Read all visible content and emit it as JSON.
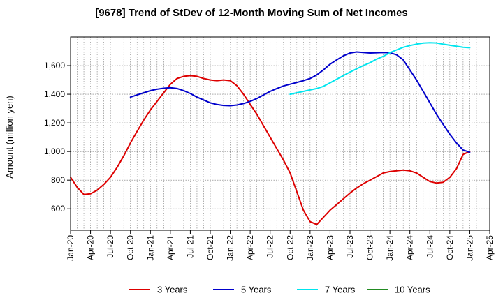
{
  "chart_data": {
    "type": "line",
    "title": "[9678]  Trend of StDev of 12-Month Moving Sum of Net Incomes",
    "ylabel": "Amount (million yen)",
    "xlabel": "",
    "ylim": [
      450,
      1800
    ],
    "yticks": [
      600,
      800,
      1000,
      1200,
      1400,
      1600
    ],
    "ytick_labels": [
      "600",
      "800",
      "1,000",
      "1,200",
      "1,400",
      "1,600"
    ],
    "x_start": "Jan-20",
    "x_end": "Apr-25",
    "xtick_labels": [
      "Jan-20",
      "Apr-20",
      "Jul-20",
      "Oct-20",
      "Jan-21",
      "Apr-21",
      "Jul-21",
      "Oct-21",
      "Jan-22",
      "Apr-22",
      "Jul-22",
      "Oct-22",
      "Jan-23",
      "Apr-23",
      "Jul-23",
      "Oct-23",
      "Jan-24",
      "Apr-24",
      "Jul-24",
      "Oct-24",
      "Jan-25",
      "Apr-25"
    ],
    "grid": true,
    "legend_position": "bottom",
    "series": [
      {
        "name": "3 Years",
        "color": "#dd0000",
        "x": [
          "2020-01",
          "2020-02",
          "2020-03",
          "2020-04",
          "2020-05",
          "2020-06",
          "2020-07",
          "2020-08",
          "2020-09",
          "2020-10",
          "2020-11",
          "2020-12",
          "2021-01",
          "2021-02",
          "2021-03",
          "2021-04",
          "2021-05",
          "2021-06",
          "2021-07",
          "2021-08",
          "2021-09",
          "2021-10",
          "2021-11",
          "2021-12",
          "2022-01",
          "2022-02",
          "2022-03",
          "2022-04",
          "2022-05",
          "2022-06",
          "2022-07",
          "2022-08",
          "2022-09",
          "2022-10",
          "2022-11",
          "2022-12",
          "2023-01",
          "2023-02",
          "2023-03",
          "2023-04",
          "2023-05",
          "2023-06",
          "2023-07",
          "2023-08",
          "2023-09",
          "2023-10",
          "2023-11",
          "2023-12",
          "2024-01",
          "2024-02",
          "2024-03",
          "2024-04",
          "2024-05",
          "2024-06",
          "2024-07",
          "2024-08",
          "2024-09",
          "2024-10",
          "2024-11",
          "2024-12",
          "2025-01"
        ],
        "values": [
          820,
          750,
          700,
          705,
          730,
          770,
          820,
          890,
          970,
          1060,
          1140,
          1220,
          1290,
          1350,
          1410,
          1470,
          1510,
          1525,
          1530,
          1525,
          1510,
          1500,
          1495,
          1500,
          1495,
          1460,
          1400,
          1330,
          1260,
          1180,
          1100,
          1020,
          940,
          850,
          720,
          590,
          510,
          490,
          540,
          590,
          630,
          670,
          710,
          745,
          775,
          800,
          825,
          850,
          860,
          865,
          870,
          865,
          850,
          820,
          790,
          780,
          785,
          820,
          880,
          980,
          1000
        ],
        "values_note": ""
      },
      {
        "name": "5 Years",
        "color": "#0000cc",
        "x": [
          "2020-10",
          "2020-11",
          "2020-12",
          "2021-01",
          "2021-02",
          "2021-03",
          "2021-04",
          "2021-05",
          "2021-06",
          "2021-07",
          "2021-08",
          "2021-09",
          "2021-10",
          "2021-11",
          "2021-12",
          "2022-01",
          "2022-02",
          "2022-03",
          "2022-04",
          "2022-05",
          "2022-06",
          "2022-07",
          "2022-08",
          "2022-09",
          "2022-10",
          "2022-11",
          "2022-12",
          "2023-01",
          "2023-02",
          "2023-03",
          "2023-04",
          "2023-05",
          "2023-06",
          "2023-07",
          "2023-08",
          "2023-09",
          "2023-10",
          "2023-11",
          "2023-12",
          "2024-01",
          "2024-02",
          "2024-03",
          "2024-04",
          "2024-05",
          "2024-06",
          "2024-07",
          "2024-08",
          "2024-09",
          "2024-10",
          "2024-11",
          "2024-12",
          "2025-01"
        ],
        "values": [
          1380,
          1395,
          1410,
          1425,
          1435,
          1442,
          1445,
          1440,
          1425,
          1405,
          1380,
          1360,
          1340,
          1328,
          1322,
          1320,
          1325,
          1335,
          1350,
          1370,
          1395,
          1420,
          1440,
          1458,
          1470,
          1482,
          1495,
          1510,
          1535,
          1570,
          1610,
          1640,
          1668,
          1688,
          1695,
          1692,
          1688,
          1690,
          1692,
          1690,
          1675,
          1640,
          1570,
          1500,
          1420,
          1340,
          1260,
          1190,
          1120,
          1060,
          1010,
          995
        ]
      },
      {
        "name": "7 Years",
        "color": "#00e5ee",
        "x": [
          "2022-10",
          "2022-11",
          "2022-12",
          "2023-01",
          "2023-02",
          "2023-03",
          "2023-04",
          "2023-05",
          "2023-06",
          "2023-07",
          "2023-08",
          "2023-09",
          "2023-10",
          "2023-11",
          "2023-12",
          "2024-01",
          "2024-02",
          "2024-03",
          "2024-04",
          "2024-05",
          "2024-06",
          "2024-07",
          "2024-08",
          "2024-09",
          "2024-10",
          "2024-11",
          "2024-12",
          "2025-01"
        ],
        "values": [
          1400,
          1410,
          1420,
          1430,
          1440,
          1455,
          1480,
          1505,
          1530,
          1555,
          1578,
          1600,
          1620,
          1645,
          1665,
          1690,
          1710,
          1728,
          1740,
          1750,
          1757,
          1760,
          1758,
          1750,
          1742,
          1735,
          1728,
          1725
        ]
      },
      {
        "name": "10 Years",
        "color": "#228b22",
        "x": [],
        "values": []
      }
    ]
  }
}
